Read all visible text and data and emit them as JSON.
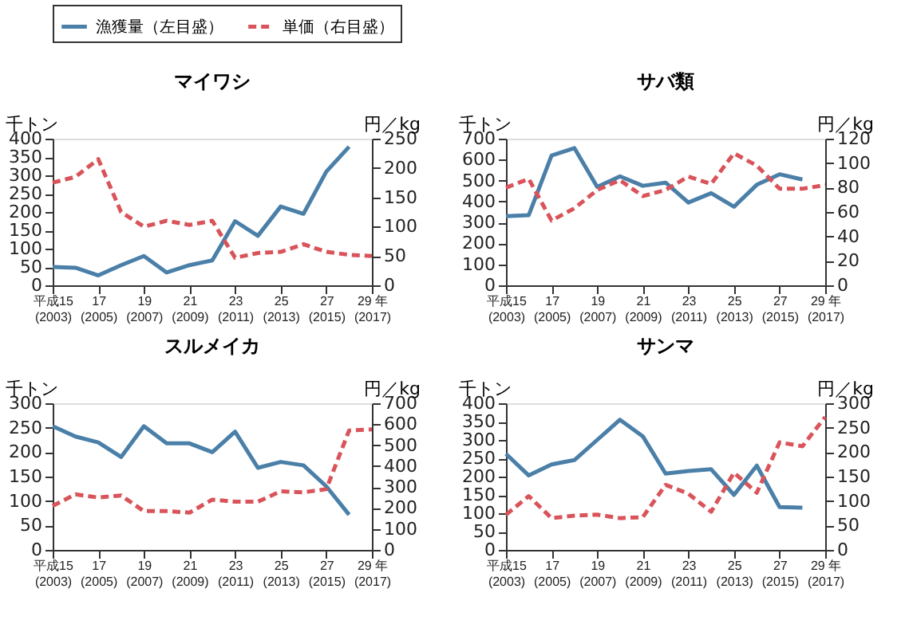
{
  "chart_data": [
    {
      "type": "line",
      "title": "マイワシ",
      "ylabel": "千トン",
      "y2label": "円／kg",
      "legend": "top",
      "grid": false,
      "marker": "none",
      "categories": [
        "平成15\n(2003)",
        null,
        "17\n(2005)",
        null,
        "19\n(2007)",
        null,
        "21\n(2009)",
        null,
        "23\n(2011)",
        null,
        "25\n(2013)",
        null,
        "27\n(2015)",
        null,
        "29 年\n(2017)"
      ],
      "ylim": [
        0,
        400
      ],
      "yticks": [
        0,
        50,
        100,
        150,
        200,
        250,
        300,
        350,
        400
      ],
      "y2lim": [
        0,
        250
      ],
      "y2ticks": [
        0,
        50,
        100,
        150,
        200,
        250
      ],
      "series": [
        {
          "name": "漁獲量（左目盛）",
          "color": "#4a7fa8",
          "line_style": "solid",
          "values": [
            50,
            48,
            27,
            55,
            80,
            35,
            55,
            68,
            175,
            135,
            215,
            195,
            310,
            378,
            null
          ]
        },
        {
          "name": "単価（右目盛）",
          "color": "#d9545a",
          "line_style": "dashed",
          "axis": "y2",
          "values": [
            175,
            185,
            215,
            125,
            100,
            110,
            103,
            110,
            47,
            55,
            57,
            70,
            57,
            52,
            50
          ]
        }
      ]
    },
    {
      "type": "line",
      "title": "サバ類",
      "ylabel": "千トン",
      "y2label": "円／kg",
      "grid": false,
      "marker": "none",
      "categories": [
        "平成15\n(2003)",
        null,
        "17\n(2005)",
        null,
        "19\n(2007)",
        null,
        "21\n(2009)",
        null,
        "23\n(2011)",
        null,
        "25\n(2013)",
        null,
        "27\n(2015)",
        null,
        "29 年\n(2017)"
      ],
      "ylim": [
        0,
        700
      ],
      "yticks": [
        0,
        100,
        200,
        300,
        400,
        500,
        600,
        700
      ],
      "y2lim": [
        0,
        120
      ],
      "y2ticks": [
        0,
        20,
        40,
        60,
        80,
        100,
        120
      ],
      "series": [
        {
          "name": "漁獲量（左目盛）",
          "color": "#4a7fa8",
          "line_style": "solid",
          "values": [
            330,
            335,
            620,
            655,
            470,
            520,
            475,
            490,
            395,
            440,
            375,
            480,
            530,
            505,
            null
          ]
        },
        {
          "name": "単価（右目盛）",
          "color": "#d9545a",
          "line_style": "dashed",
          "axis": "y2",
          "values": [
            80,
            87,
            53,
            63,
            78,
            86,
            73,
            78,
            89,
            83,
            108,
            98,
            79,
            79,
            82
          ]
        }
      ]
    },
    {
      "type": "line",
      "title": "スルメイカ",
      "ylabel": "千トン",
      "y2label": "円／kg",
      "grid": false,
      "marker": "none",
      "categories": [
        "平成15\n(2003)",
        null,
        "17\n(2005)",
        null,
        "19\n(2007)",
        null,
        "21\n(2009)",
        null,
        "23\n(2011)",
        null,
        "25\n(2013)",
        null,
        "27\n(2015)",
        null,
        "29 年\n(2017)"
      ],
      "ylim": [
        0,
        300
      ],
      "yticks": [
        0,
        50,
        100,
        150,
        200,
        250,
        300
      ],
      "y2lim": [
        0,
        700
      ],
      "y2ticks": [
        0,
        100,
        200,
        300,
        400,
        500,
        600,
        700
      ],
      "series": [
        {
          "name": "漁獲量（左目盛）",
          "color": "#4a7fa8",
          "line_style": "solid",
          "values": [
            253,
            232,
            220,
            190,
            253,
            218,
            218,
            200,
            242,
            168,
            180,
            173,
            130,
            72,
            null
          ]
        },
        {
          "name": "単価（右目盛）",
          "color": "#d9545a",
          "line_style": "dashed",
          "axis": "y2",
          "values": [
            210,
            265,
            250,
            260,
            185,
            185,
            178,
            240,
            230,
            230,
            280,
            275,
            290,
            570,
            575
          ]
        }
      ]
    },
    {
      "type": "line",
      "title": "サンマ",
      "ylabel": "千トン",
      "y2label": "円／kg",
      "grid": false,
      "marker": "none",
      "categories": [
        "平成15\n(2003)",
        null,
        "17\n(2005)",
        null,
        "19\n(2007)",
        null,
        "21\n(2009)",
        null,
        "23\n(2011)",
        null,
        "25\n(2013)",
        null,
        "27\n(2015)",
        null,
        "29 年\n(2017)"
      ],
      "ylim": [
        0,
        400
      ],
      "yticks": [
        0,
        50,
        100,
        150,
        200,
        250,
        300,
        350,
        400
      ],
      "y2lim": [
        0,
        300
      ],
      "y2ticks": [
        0,
        50,
        100,
        150,
        200,
        250,
        300
      ],
      "series": [
        {
          "name": "漁獲量（左目盛）",
          "color": "#4a7fa8",
          "line_style": "solid",
          "values": [
            262,
            203,
            233,
            245,
            300,
            355,
            310,
            208,
            215,
            220,
            150,
            230,
            117,
            115,
            null
          ]
        },
        {
          "name": "単価（右目盛）",
          "color": "#d9545a",
          "line_style": "dashed",
          "axis": "y2",
          "values": [
            72,
            110,
            65,
            70,
            72,
            65,
            67,
            133,
            115,
            78,
            158,
            117,
            220,
            212,
            272
          ]
        }
      ]
    }
  ]
}
